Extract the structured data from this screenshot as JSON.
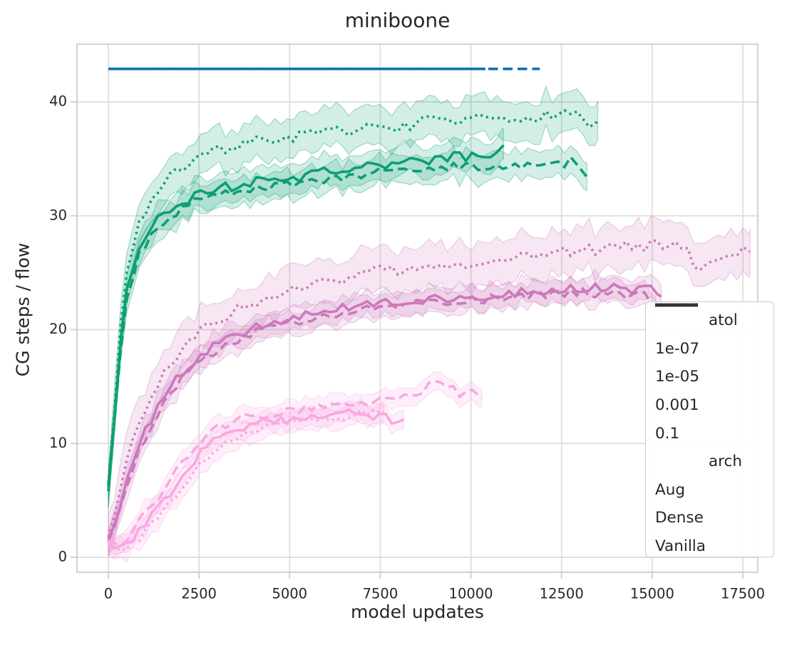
{
  "chart_data": {
    "type": "line",
    "title": "miniboone",
    "xlabel": "model updates",
    "ylabel": "CG steps / flow",
    "xlim": [
      -870,
      17920
    ],
    "ylim": [
      -1.3,
      45.1
    ],
    "xticks": [
      0,
      2500,
      5000,
      7500,
      10000,
      12500,
      15000,
      17500
    ],
    "yticks": [
      0,
      10,
      20,
      30,
      40
    ],
    "grid": true,
    "grid_color": "#dcdcdc",
    "border_color": "#cdcdcd",
    "text_color": "#262626",
    "legend": {
      "color_title": "atol",
      "color_entries": [
        {
          "label": "1e-07",
          "color": "#0f72b0"
        },
        {
          "label": "1e-05",
          "color": "#0c9e74"
        },
        {
          "label": "0.001",
          "color": "#cc78bc"
        },
        {
          "label": "0.1",
          "color": "#f9a8e1"
        }
      ],
      "style_title": "arch",
      "style_entries": [
        {
          "label": "Aug",
          "dash": "solid"
        },
        {
          "label": "Dense",
          "dash": "dashed"
        },
        {
          "label": "Vanilla",
          "dash": "dotted"
        }
      ],
      "position": "right"
    },
    "series": [
      {
        "atol": "1e-05",
        "arch": "Vanilla",
        "color": "#0c9e74",
        "dash": "dotted",
        "band": 1.7,
        "noise": 0.45,
        "points": [
          [
            0,
            6.5
          ],
          [
            120,
            11
          ],
          [
            300,
            19
          ],
          [
            500,
            25
          ],
          [
            800,
            29
          ],
          [
            1200,
            31.5
          ],
          [
            1600,
            33
          ],
          [
            2000,
            34.2
          ],
          [
            2500,
            35
          ],
          [
            3000,
            35.7
          ],
          [
            3600,
            36.3
          ],
          [
            4200,
            36.6
          ],
          [
            5000,
            36.9
          ],
          [
            5800,
            37.2
          ],
          [
            6600,
            37.5
          ],
          [
            7400,
            37.7
          ],
          [
            8200,
            37.9
          ],
          [
            9000,
            38.4
          ],
          [
            9400,
            38.0
          ],
          [
            10000,
            38.4
          ],
          [
            10600,
            38.6
          ],
          [
            11000,
            38.2
          ],
          [
            11600,
            38.7
          ],
          [
            12200,
            38.9
          ],
          [
            12700,
            39.1
          ],
          [
            13000,
            38.9
          ],
          [
            13200,
            38.0
          ],
          [
            13350,
            37.7
          ],
          [
            13500,
            38.4
          ]
        ]
      },
      {
        "atol": "1e-05",
        "arch": "Dense",
        "color": "#0c9e74",
        "dash": "dashed",
        "band": 1.2,
        "noise": 0.4,
        "points": [
          [
            0,
            5.8
          ],
          [
            120,
            10
          ],
          [
            300,
            17
          ],
          [
            500,
            22.5
          ],
          [
            800,
            26.3
          ],
          [
            1200,
            28.5
          ],
          [
            1600,
            29.8
          ],
          [
            2000,
            30.6
          ],
          [
            2500,
            31.3
          ],
          [
            3000,
            31.7
          ],
          [
            3600,
            32.1
          ],
          [
            4200,
            32.4
          ],
          [
            5000,
            32.8
          ],
          [
            5800,
            33.1
          ],
          [
            6600,
            33.4
          ],
          [
            7400,
            33.8
          ],
          [
            8200,
            33.9
          ],
          [
            9000,
            34.1
          ],
          [
            9800,
            34.3
          ],
          [
            10600,
            34.4
          ],
          [
            11400,
            34.5
          ],
          [
            12200,
            34.6
          ],
          [
            12600,
            34.4
          ],
          [
            12850,
            35.3
          ],
          [
            13050,
            34.0
          ],
          [
            13200,
            33.4
          ]
        ]
      },
      {
        "atol": "1e-05",
        "arch": "Aug",
        "color": "#0c9e74",
        "dash": "solid",
        "band": 1.3,
        "noise": 0.45,
        "points": [
          [
            0,
            6.3
          ],
          [
            120,
            10.5
          ],
          [
            300,
            17.5
          ],
          [
            500,
            23.5
          ],
          [
            800,
            27
          ],
          [
            1200,
            29.2
          ],
          [
            1600,
            30.4
          ],
          [
            2000,
            31.2
          ],
          [
            2500,
            31.9
          ],
          [
            3000,
            32.3
          ],
          [
            3600,
            32.7
          ],
          [
            4200,
            33.0
          ],
          [
            5000,
            33.3
          ],
          [
            5800,
            33.7
          ],
          [
            6600,
            34.2
          ],
          [
            7400,
            34.5
          ],
          [
            8200,
            34.8
          ],
          [
            9000,
            35.0
          ],
          [
            9800,
            35.2
          ],
          [
            10300,
            35.3
          ],
          [
            10600,
            35.0
          ],
          [
            10900,
            36.2
          ]
        ]
      },
      {
        "atol": "0.001",
        "arch": "Vanilla",
        "color": "#cc78bc",
        "dash": "dotted",
        "band": 1.9,
        "noise": 0.5,
        "points": [
          [
            0,
            1.8
          ],
          [
            200,
            4
          ],
          [
            400,
            7
          ],
          [
            700,
            10.5
          ],
          [
            1000,
            13
          ],
          [
            1500,
            16
          ],
          [
            2000,
            18.2
          ],
          [
            2500,
            19.6
          ],
          [
            3000,
            20.8
          ],
          [
            3500,
            21.7
          ],
          [
            4000,
            22.4
          ],
          [
            4500,
            22.9
          ],
          [
            5000,
            23.3
          ],
          [
            5500,
            23.7
          ],
          [
            6000,
            24.1
          ],
          [
            6500,
            24.4
          ],
          [
            7000,
            24.8
          ],
          [
            7500,
            25.1
          ],
          [
            8000,
            25.3
          ],
          [
            8500,
            25.5
          ],
          [
            9000,
            25.7
          ],
          [
            9500,
            25.8
          ],
          [
            10000,
            25.9
          ],
          [
            10500,
            26.1
          ],
          [
            11000,
            26.3
          ],
          [
            11500,
            26.5
          ],
          [
            12000,
            26.6
          ],
          [
            12500,
            26.8
          ],
          [
            13000,
            27.0
          ],
          [
            13500,
            27.1
          ],
          [
            14000,
            27.2
          ],
          [
            14500,
            27.3
          ],
          [
            15000,
            27.4
          ],
          [
            15500,
            27.5
          ],
          [
            15900,
            27.2
          ],
          [
            16300,
            25.2
          ],
          [
            16700,
            26.6
          ],
          [
            17100,
            26.3
          ],
          [
            17400,
            26.8
          ],
          [
            17700,
            26.9
          ]
        ]
      },
      {
        "atol": "0.001",
        "arch": "Dense",
        "color": "#cc78bc",
        "dash": "dashed",
        "band": 1.0,
        "noise": 0.4,
        "points": [
          [
            0,
            1.4
          ],
          [
            200,
            2.6
          ],
          [
            400,
            5
          ],
          [
            700,
            8
          ],
          [
            1000,
            10.4
          ],
          [
            1500,
            13.4
          ],
          [
            2000,
            15.6
          ],
          [
            2500,
            17.1
          ],
          [
            3000,
            18.3
          ],
          [
            3500,
            19.1
          ],
          [
            4000,
            19.7
          ],
          [
            4500,
            20.2
          ],
          [
            5000,
            20.6
          ],
          [
            5500,
            21.0
          ],
          [
            6000,
            21.3
          ],
          [
            6500,
            21.6
          ],
          [
            7000,
            21.8
          ],
          [
            7500,
            22.0
          ],
          [
            8000,
            22.1
          ],
          [
            8500,
            22.3
          ],
          [
            9000,
            22.4
          ],
          [
            9500,
            22.5
          ],
          [
            10000,
            22.6
          ],
          [
            10500,
            22.7
          ],
          [
            11000,
            22.9
          ],
          [
            11500,
            23.0
          ],
          [
            12000,
            23.1
          ],
          [
            12500,
            23.2
          ],
          [
            13000,
            23.3
          ],
          [
            13500,
            23.2
          ],
          [
            14000,
            23.4
          ],
          [
            14400,
            22.6
          ],
          [
            14700,
            23.2
          ],
          [
            15100,
            21.9
          ]
        ]
      },
      {
        "atol": "0.001",
        "arch": "Aug",
        "color": "#cc78bc",
        "dash": "solid",
        "band": 1.0,
        "noise": 0.4,
        "points": [
          [
            0,
            1.6
          ],
          [
            200,
            3
          ],
          [
            400,
            5.6
          ],
          [
            700,
            8.6
          ],
          [
            1000,
            11
          ],
          [
            1500,
            14
          ],
          [
            2000,
            16.1
          ],
          [
            2500,
            17.6
          ],
          [
            3000,
            18.7
          ],
          [
            3500,
            19.5
          ],
          [
            4000,
            20.1
          ],
          [
            4500,
            20.5
          ],
          [
            5000,
            20.9
          ],
          [
            5500,
            21.3
          ],
          [
            6000,
            21.6
          ],
          [
            6500,
            21.9
          ],
          [
            7000,
            22.1
          ],
          [
            7500,
            22.3
          ],
          [
            8000,
            22.4
          ],
          [
            8500,
            22.6
          ],
          [
            9000,
            22.7
          ],
          [
            9500,
            22.8
          ],
          [
            10000,
            22.8
          ],
          [
            10500,
            23.0
          ],
          [
            11000,
            23.1
          ],
          [
            11500,
            23.3
          ],
          [
            12000,
            23.4
          ],
          [
            12500,
            23.5
          ],
          [
            13000,
            23.6
          ],
          [
            13500,
            23.7
          ],
          [
            14000,
            23.9
          ],
          [
            14400,
            23.5
          ],
          [
            14800,
            23.8
          ],
          [
            15250,
            22.9
          ]
        ]
      },
      {
        "atol": "0.1",
        "arch": "Vanilla",
        "color": "#f9a8e1",
        "dash": "dotted",
        "band": 0.9,
        "noise": 0.4,
        "points": [
          [
            0,
            1.2
          ],
          [
            250,
            0.9
          ],
          [
            500,
            1.0
          ],
          [
            800,
            1.6
          ],
          [
            1200,
            3.0
          ],
          [
            1600,
            4.6
          ],
          [
            2000,
            6.1
          ],
          [
            2500,
            7.9
          ],
          [
            3000,
            9.3
          ],
          [
            3500,
            10.3
          ],
          [
            4000,
            11.0
          ],
          [
            4500,
            11.5
          ],
          [
            5000,
            11.9
          ],
          [
            5500,
            12.1
          ],
          [
            6000,
            12.3
          ],
          [
            6500,
            12.4
          ],
          [
            7000,
            12.6
          ],
          [
            7600,
            12.8
          ]
        ]
      },
      {
        "atol": "0.1",
        "arch": "Dense",
        "color": "#f9a8e1",
        "dash": "dashed",
        "band": 0.8,
        "noise": 0.4,
        "points": [
          [
            0,
            1.5
          ],
          [
            250,
            1.1
          ],
          [
            500,
            1.6
          ],
          [
            800,
            2.8
          ],
          [
            1200,
            4.6
          ],
          [
            1600,
            6.4
          ],
          [
            2000,
            8.2
          ],
          [
            2500,
            10.0
          ],
          [
            3000,
            11.3
          ],
          [
            3500,
            12.0
          ],
          [
            4000,
            12.4
          ],
          [
            4500,
            12.7
          ],
          [
            5000,
            12.9
          ],
          [
            5500,
            13.1
          ],
          [
            6000,
            13.2
          ],
          [
            6500,
            13.4
          ],
          [
            7000,
            13.5
          ],
          [
            7500,
            13.6
          ],
          [
            8000,
            13.8
          ],
          [
            8500,
            14.3
          ],
          [
            8900,
            15.2
          ],
          [
            9150,
            15.8
          ],
          [
            9400,
            14.9
          ],
          [
            9700,
            14.3
          ],
          [
            10000,
            14.8
          ],
          [
            10300,
            14.0
          ]
        ]
      },
      {
        "atol": "0.1",
        "arch": "Aug",
        "color": "#f9a8e1",
        "dash": "solid",
        "band": 0.8,
        "noise": 0.38,
        "points": [
          [
            0,
            1.3
          ],
          [
            250,
            1.0
          ],
          [
            500,
            1.3
          ],
          [
            800,
            2.1
          ],
          [
            1200,
            3.6
          ],
          [
            1600,
            5.2
          ],
          [
            2000,
            7.0
          ],
          [
            2500,
            9.0
          ],
          [
            3000,
            10.4
          ],
          [
            3500,
            11.2
          ],
          [
            4000,
            11.7
          ],
          [
            4500,
            11.9
          ],
          [
            5000,
            12.1
          ],
          [
            5500,
            12.3
          ],
          [
            6000,
            12.5
          ],
          [
            6500,
            12.6
          ],
          [
            7000,
            12.9
          ],
          [
            7300,
            12.3
          ],
          [
            7600,
            12.9
          ],
          [
            7900,
            11.8
          ],
          [
            8150,
            12.1
          ]
        ]
      },
      {
        "atol": "1e-07",
        "arch": "Dense",
        "color": "#0f72b0",
        "dash": "dashed",
        "band": 0,
        "noise": 0,
        "points": [
          [
            0,
            42.9
          ],
          [
            11900,
            42.9
          ]
        ]
      },
      {
        "atol": "1e-07",
        "arch": "Aug",
        "color": "#0f72b0",
        "dash": "solid",
        "band": 0,
        "noise": 0,
        "points": [
          [
            0,
            42.9
          ],
          [
            10400,
            42.9
          ]
        ]
      }
    ]
  }
}
